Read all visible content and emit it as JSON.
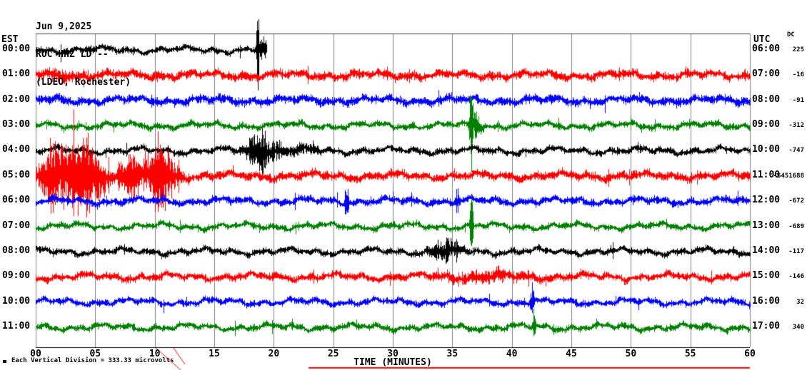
{
  "header": {
    "date": "Jun 9,2025",
    "station": "ROC HHZ LD --",
    "network": "(LDEO, Rochester)"
  },
  "chart_data": {
    "type": "line",
    "subtype": "helicorder-seismogram",
    "xlabel": "TIME (MINUTES)",
    "x_range_minutes": [
      0,
      60
    ],
    "x_ticks": [
      "00",
      "05",
      "10",
      "15",
      "20",
      "25",
      "30",
      "35",
      "40",
      "45",
      "50",
      "55",
      "60"
    ],
    "left_axis": "EST",
    "right_axis": "UTC",
    "dc_header": "DC",
    "note": "Each Vertical Division =  333.33 microvolts",
    "vertical_division_microvolts": 333.33,
    "grid": {
      "vertical_every_min": 5,
      "color": "#808080",
      "border_color": "#000000"
    },
    "trace_colors_cycle": [
      "#000000",
      "#ff0000",
      "#0000ff",
      "#008000"
    ],
    "rows": [
      {
        "est": "00:00",
        "utc": "06:00",
        "dc": "225",
        "color": "#000000",
        "base_amp": 6,
        "duration_min": 19.4,
        "events": [
          {
            "t": 18.62,
            "w": 0.08,
            "mult": 13
          },
          {
            "t": 19.1,
            "w": 0.3,
            "mult": 3
          }
        ]
      },
      {
        "est": "01:00",
        "utc": "07:00",
        "dc": "-16",
        "color": "#ff0000",
        "base_amp": 8,
        "duration_min": 60,
        "events": [
          {
            "t": 2,
            "w": 1.5,
            "mult": 0.5
          }
        ]
      },
      {
        "est": "02:00",
        "utc": "08:00",
        "dc": "-91",
        "color": "#0000ff",
        "base_amp": 8,
        "duration_min": 60,
        "events": []
      },
      {
        "est": "03:00",
        "utc": "09:00",
        "dc": "-312",
        "color": "#008000",
        "base_amp": 6,
        "duration_min": 60,
        "events": [
          {
            "t": 36.55,
            "w": 0.12,
            "mult": 13
          },
          {
            "t": 36.9,
            "w": 0.5,
            "mult": 3
          }
        ]
      },
      {
        "est": "04:00",
        "utc": "10:00",
        "dc": "-747",
        "color": "#000000",
        "base_amp": 6,
        "duration_min": 60,
        "events": [
          {
            "t": 18.8,
            "w": 0.9,
            "mult": 5
          },
          {
            "t": 20.5,
            "w": 2.5,
            "mult": 1.5
          }
        ]
      },
      {
        "est": "05:00",
        "utc": "11:00",
        "dc": "-6451688",
        "color": "#ff0000",
        "base_amp": 8,
        "duration_min": 60,
        "events": [
          {
            "t": 1.6,
            "w": 1.2,
            "mult": 7
          },
          {
            "t": 4.2,
            "w": 1.4,
            "mult": 9
          },
          {
            "t": 7.8,
            "w": 0.9,
            "mult": 5
          },
          {
            "t": 10.4,
            "w": 1.2,
            "mult": 8
          }
        ]
      },
      {
        "est": "06:00",
        "utc": "12:00",
        "dc": "-672",
        "color": "#0000ff",
        "base_amp": 7,
        "duration_min": 60,
        "events": [
          {
            "t": 26.1,
            "w": 0.15,
            "mult": 5
          },
          {
            "t": 35.4,
            "w": 0.15,
            "mult": 3
          }
        ]
      },
      {
        "est": "07:00",
        "utc": "13:00",
        "dc": "-689",
        "color": "#008000",
        "base_amp": 6,
        "duration_min": 60,
        "events": [
          {
            "t": 36.6,
            "w": 0.1,
            "mult": 16
          }
        ]
      },
      {
        "est": "08:00",
        "utc": "14:00",
        "dc": "-117",
        "color": "#000000",
        "base_amp": 6,
        "duration_min": 60,
        "events": [
          {
            "t": 34.3,
            "w": 1.1,
            "mult": 3
          }
        ]
      },
      {
        "est": "09:00",
        "utc": "15:00",
        "dc": "-146",
        "color": "#ff0000",
        "base_amp": 7,
        "duration_min": 60,
        "events": [
          {
            "t": 37.5,
            "w": 4,
            "mult": 0.9
          }
        ]
      },
      {
        "est": "10:00",
        "utc": "16:00",
        "dc": "32",
        "color": "#0000ff",
        "base_amp": 6,
        "duration_min": 60,
        "events": [
          {
            "t": 41.7,
            "w": 0.2,
            "mult": 4
          }
        ]
      },
      {
        "est": "11:00",
        "utc": "17:00",
        "dc": "340",
        "color": "#008000",
        "base_amp": 6,
        "duration_min": 60,
        "events": [
          {
            "t": 41.85,
            "w": 0.15,
            "mult": 5
          }
        ]
      }
    ],
    "artifacts": [
      {
        "name": "red-diagonal-mark-1",
        "color": "#ff0000",
        "width": 1,
        "points": [
          [
            218,
            488
          ],
          [
            253,
            519
          ]
        ]
      },
      {
        "name": "red-diagonal-mark-2",
        "color": "#ff0000",
        "width": 1,
        "points": [
          [
            243,
            488
          ],
          [
            259,
            511
          ]
        ]
      },
      {
        "name": "red-bottom-line",
        "color": "#ff0000",
        "width": 2,
        "points": [
          [
            432,
            516
          ],
          [
            1050,
            516
          ]
        ]
      }
    ]
  }
}
